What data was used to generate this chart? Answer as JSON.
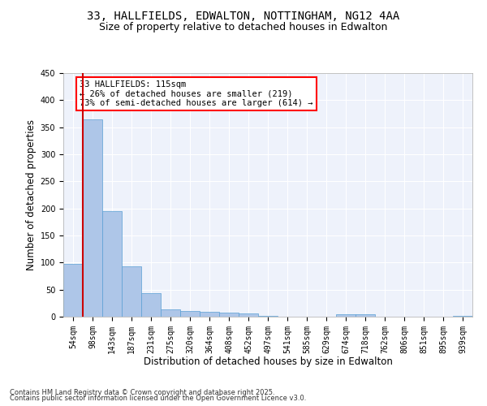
{
  "title_line1": "33, HALLFIELDS, EDWALTON, NOTTINGHAM, NG12 4AA",
  "title_line2": "Size of property relative to detached houses in Edwalton",
  "xlabel": "Distribution of detached houses by size in Edwalton",
  "ylabel": "Number of detached properties",
  "bar_color": "#aec6e8",
  "bar_edge_color": "#5a9fd4",
  "background_color": "#eef2fb",
  "grid_color": "#ffffff",
  "bins": [
    "54sqm",
    "98sqm",
    "143sqm",
    "187sqm",
    "231sqm",
    "275sqm",
    "320sqm",
    "364sqm",
    "408sqm",
    "452sqm",
    "497sqm",
    "541sqm",
    "585sqm",
    "629sqm",
    "674sqm",
    "718sqm",
    "762sqm",
    "806sqm",
    "851sqm",
    "895sqm",
    "939sqm"
  ],
  "values": [
    98,
    365,
    195,
    93,
    44,
    13,
    10,
    9,
    7,
    6,
    1,
    0,
    0,
    0,
    5,
    5,
    0,
    0,
    0,
    0,
    2
  ],
  "ylim": [
    0,
    450
  ],
  "yticks": [
    0,
    50,
    100,
    150,
    200,
    250,
    300,
    350,
    400,
    450
  ],
  "red_line_bin_index": 1,
  "annotation_text": "33 HALLFIELDS: 115sqm\n← 26% of detached houses are smaller (219)\n73% of semi-detached houses are larger (614) →",
  "red_line_color": "#cc0000",
  "footer_line1": "Contains HM Land Registry data © Crown copyright and database right 2025.",
  "footer_line2": "Contains public sector information licensed under the Open Government Licence v3.0.",
  "title_fontsize": 10,
  "subtitle_fontsize": 9,
  "tick_fontsize": 7,
  "annotation_fontsize": 7.5
}
